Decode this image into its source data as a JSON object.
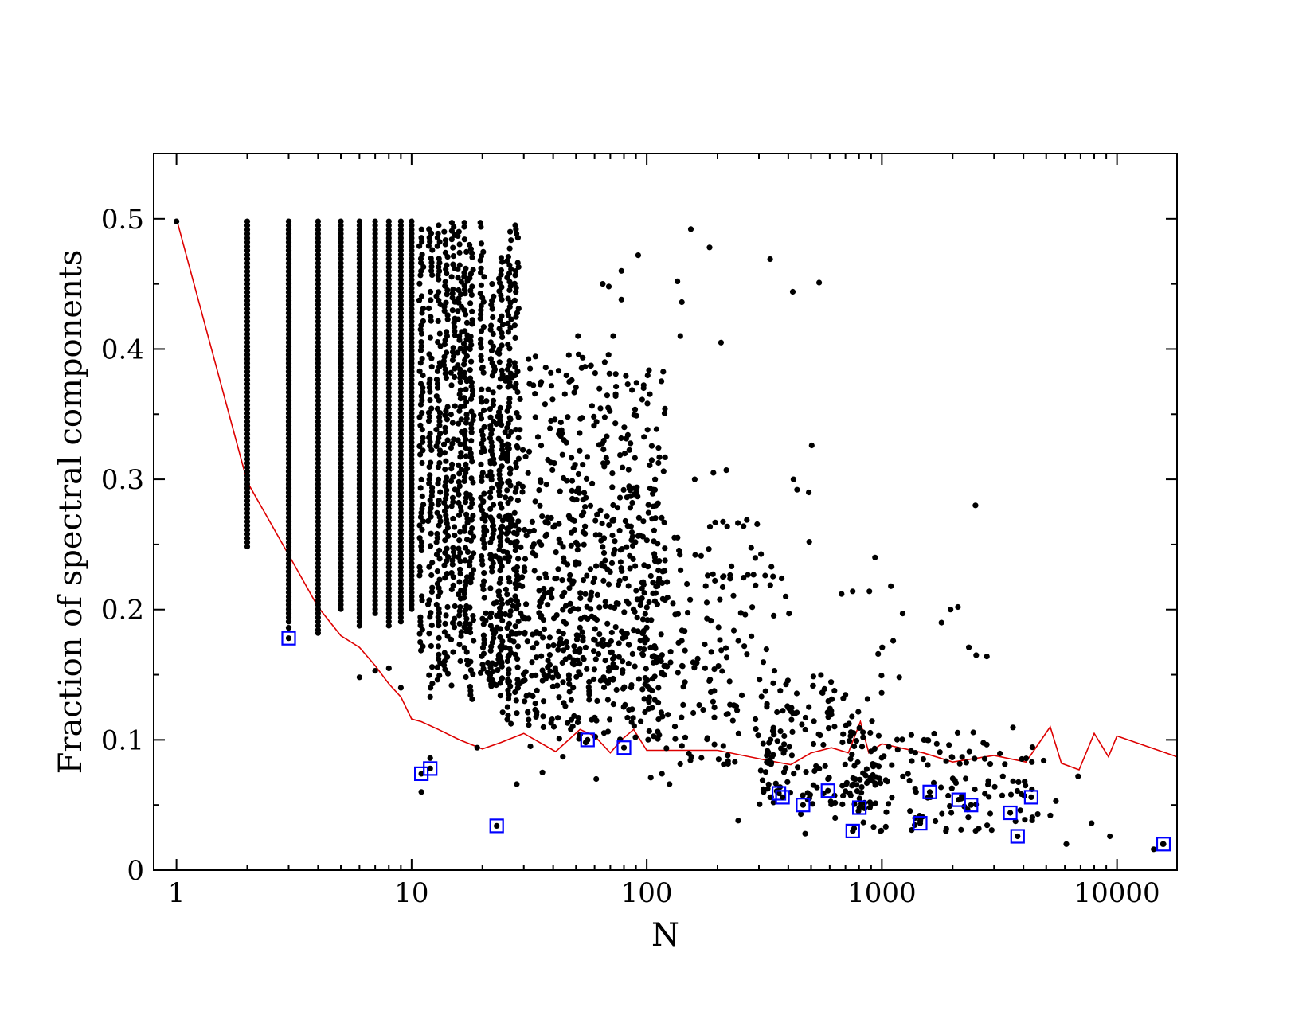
{
  "chart_data": {
    "type": "scatter",
    "title": "",
    "xlabel": "N",
    "ylabel": "Fraction of spectral components",
    "x_scale": "log",
    "xlim": [
      0.8,
      18000
    ],
    "ylim": [
      0,
      0.55
    ],
    "x_ticks": [
      1,
      10,
      100,
      1000,
      10000
    ],
    "x_tick_labels": [
      "1",
      "10",
      "100",
      "1000",
      "10000"
    ],
    "y_ticks": [
      0,
      0.1,
      0.2,
      0.3,
      0.4,
      0.5
    ],
    "y_tick_labels": [
      "0",
      "0.1",
      "0.2",
      "0.3",
      "0.4",
      "0.5"
    ],
    "grid": false,
    "legend": "none",
    "colors": {
      "points": "#000000",
      "highlight": "#0000ff",
      "line": "#dd0000",
      "frame": "#000000"
    },
    "series": [
      {
        "kind": "scatter",
        "color": "#000000",
        "columns": [
          {
            "x": 2,
            "ymin": 0.248,
            "ymax": 0.498
          },
          {
            "x": 3,
            "ymin": 0.19,
            "ymax": 0.498
          },
          {
            "x": 4,
            "ymin": 0.182,
            "ymax": 0.498
          },
          {
            "x": 5,
            "ymin": 0.2,
            "ymax": 0.498
          },
          {
            "x": 6,
            "ymin": 0.186,
            "ymax": 0.498
          },
          {
            "x": 7,
            "ymin": 0.196,
            "ymax": 0.498
          },
          {
            "x": 8,
            "ymin": 0.186,
            "ymax": 0.498
          },
          {
            "x": 9,
            "ymin": 0.188,
            "ymax": 0.498
          },
          {
            "x": 10,
            "ymin": 0.198,
            "ymax": 0.498
          },
          {
            "x": 11,
            "ymin": 0.165,
            "ymax": 0.495
          },
          {
            "x": 12,
            "ymin": 0.135,
            "ymax": 0.492
          },
          {
            "x": 13,
            "ymin": 0.14,
            "ymax": 0.495
          },
          {
            "x": 14,
            "ymin": 0.15,
            "ymax": 0.49
          },
          {
            "x": 15,
            "ymin": 0.13,
            "ymax": 0.497
          },
          {
            "x": 16,
            "ymin": 0.16,
            "ymax": 0.49
          },
          {
            "x": 17,
            "ymin": 0.14,
            "ymax": 0.497
          },
          {
            "x": 18,
            "ymin": 0.13,
            "ymax": 0.48
          },
          {
            "x": 20,
            "ymin": 0.15,
            "ymax": 0.497
          },
          {
            "x": 22,
            "ymin": 0.14,
            "ymax": 0.45
          },
          {
            "x": 24,
            "ymin": 0.12,
            "ymax": 0.47
          },
          {
            "x": 26,
            "ymin": 0.11,
            "ymax": 0.49
          },
          {
            "x": 28,
            "ymin": 0.12,
            "ymax": 0.495
          }
        ],
        "points": [
          [
            1,
            0.498
          ],
          [
            3,
            0.186
          ],
          [
            4,
            0.182
          ],
          [
            6,
            0.148
          ],
          [
            7,
            0.153
          ],
          [
            8,
            0.155
          ],
          [
            9,
            0.14
          ],
          [
            11,
            0.06
          ],
          [
            12,
            0.086
          ],
          [
            12,
            0.133
          ],
          [
            19,
            0.094
          ],
          [
            28,
            0.066
          ],
          [
            32,
            0.095
          ],
          [
            36,
            0.075
          ],
          [
            44,
            0.087
          ],
          [
            51,
            0.41
          ],
          [
            55,
            0.098
          ],
          [
            61,
            0.07
          ],
          [
            65,
            0.45
          ],
          [
            69,
            0.448
          ],
          [
            72,
            0.41
          ],
          [
            78,
            0.46
          ],
          [
            78,
            0.438
          ],
          [
            92,
            0.472
          ],
          [
            97,
            0.37
          ],
          [
            104,
            0.071
          ],
          [
            116,
            0.074
          ],
          [
            125,
            0.066
          ],
          [
            135,
            0.452
          ],
          [
            141,
            0.436
          ],
          [
            139,
            0.41
          ],
          [
            154,
            0.492
          ],
          [
            160,
            0.3
          ],
          [
            185,
            0.478
          ],
          [
            192,
            0.305
          ],
          [
            207,
            0.405
          ],
          [
            218,
            0.307
          ],
          [
            245,
            0.038
          ],
          [
            258,
            0.264
          ],
          [
            335,
            0.469
          ],
          [
            375,
            0.224
          ],
          [
            390,
            0.21
          ],
          [
            403,
            0.197
          ],
          [
            418,
            0.444
          ],
          [
            421,
            0.3
          ],
          [
            436,
            0.292
          ],
          [
            452,
            0.043
          ],
          [
            472,
            0.028
          ],
          [
            489,
            0.29
          ],
          [
            491,
            0.252
          ],
          [
            503,
            0.326
          ],
          [
            541,
            0.451
          ],
          [
            565,
            0.059
          ],
          [
            633,
            0.04
          ],
          [
            674,
            0.212
          ],
          [
            751,
            0.214
          ],
          [
            832,
            0.102
          ],
          [
            885,
            0.214
          ],
          [
            935,
            0.24
          ],
          [
            964,
            0.166
          ],
          [
            987,
            0.03
          ],
          [
            1003,
            0.171
          ],
          [
            1092,
            0.218
          ],
          [
            1117,
            0.176
          ],
          [
            1186,
            0.148
          ],
          [
            1226,
            0.197
          ],
          [
            1398,
            0.06
          ],
          [
            1511,
            0.1
          ],
          [
            1608,
            0.056
          ],
          [
            1712,
            0.097
          ],
          [
            1792,
            0.19
          ],
          [
            1873,
            0.03
          ],
          [
            1959,
            0.2
          ],
          [
            2107,
            0.202
          ],
          [
            2344,
            0.171
          ],
          [
            2501,
            0.28
          ],
          [
            2519,
            0.165
          ],
          [
            2795,
            0.164
          ],
          [
            3019,
            0.064
          ],
          [
            3271,
            0.072
          ],
          [
            3540,
            0.058
          ],
          [
            4079,
            0.065
          ],
          [
            4346,
            0.062
          ],
          [
            4601,
            0.043
          ],
          [
            4877,
            0.084
          ],
          [
            5204,
            0.042
          ],
          [
            5497,
            0.053
          ],
          [
            6088,
            0.02
          ],
          [
            6835,
            0.072
          ],
          [
            7797,
            0.036
          ],
          [
            9327,
            0.026
          ],
          [
            14328,
            0.016
          ],
          [
            15680,
            0.02
          ]
        ],
        "cloud": [
          {
            "xmin": 20,
            "xmax": 120,
            "ymin": 0.14,
            "ymax": 0.4,
            "count": 520
          },
          {
            "xmin": 30,
            "xmax": 120,
            "ymin": 0.1,
            "ymax": 0.3,
            "count": 260
          },
          {
            "xmin": 100,
            "xmax": 350,
            "ymin": 0.08,
            "ymax": 0.27,
            "count": 170
          },
          {
            "xmin": 300,
            "xmax": 1000,
            "ymin": 0.05,
            "ymax": 0.15,
            "count": 150
          },
          {
            "xmin": 700,
            "xmax": 4500,
            "ymin": 0.03,
            "ymax": 0.11,
            "count": 130
          }
        ]
      },
      {
        "kind": "highlighted",
        "color": "#0000ff",
        "points": [
          [
            3,
            0.178
          ],
          [
            11,
            0.074
          ],
          [
            12,
            0.078
          ],
          [
            23,
            0.034
          ],
          [
            56,
            0.1
          ],
          [
            80,
            0.094
          ],
          [
            365,
            0.059
          ],
          [
            378,
            0.056
          ],
          [
            462,
            0.05
          ],
          [
            590,
            0.061
          ],
          [
            752,
            0.03
          ],
          [
            802,
            0.048
          ],
          [
            1455,
            0.036
          ],
          [
            1598,
            0.06
          ],
          [
            2121,
            0.054
          ],
          [
            2394,
            0.05
          ],
          [
            3517,
            0.044
          ],
          [
            3778,
            0.026
          ],
          [
            4317,
            0.056
          ],
          [
            15760,
            0.02
          ]
        ]
      },
      {
        "kind": "line",
        "color": "#dd0000",
        "points": [
          [
            1,
            0.5
          ],
          [
            2,
            0.298
          ],
          [
            3,
            0.242
          ],
          [
            4,
            0.202
          ],
          [
            5,
            0.18
          ],
          [
            6,
            0.171
          ],
          [
            7,
            0.157
          ],
          [
            8,
            0.143
          ],
          [
            9,
            0.133
          ],
          [
            10,
            0.116
          ],
          [
            11,
            0.114
          ],
          [
            13,
            0.108
          ],
          [
            16,
            0.1
          ],
          [
            20,
            0.093
          ],
          [
            24,
            0.098
          ],
          [
            30,
            0.105
          ],
          [
            41,
            0.091
          ],
          [
            52,
            0.108
          ],
          [
            60,
            0.103
          ],
          [
            70,
            0.09
          ],
          [
            78,
            0.1
          ],
          [
            88,
            0.108
          ],
          [
            100,
            0.092
          ],
          [
            150,
            0.092
          ],
          [
            200,
            0.092
          ],
          [
            330,
            0.084
          ],
          [
            410,
            0.081
          ],
          [
            500,
            0.09
          ],
          [
            610,
            0.094
          ],
          [
            720,
            0.09
          ],
          [
            810,
            0.114
          ],
          [
            880,
            0.09
          ],
          [
            1000,
            0.097
          ],
          [
            1500,
            0.09
          ],
          [
            2000,
            0.083
          ],
          [
            3000,
            0.088
          ],
          [
            4100,
            0.083
          ],
          [
            5200,
            0.11
          ],
          [
            5800,
            0.082
          ],
          [
            6900,
            0.077
          ],
          [
            8000,
            0.105
          ],
          [
            9200,
            0.087
          ],
          [
            10000,
            0.103
          ],
          [
            18000,
            0.087
          ]
        ]
      }
    ]
  }
}
